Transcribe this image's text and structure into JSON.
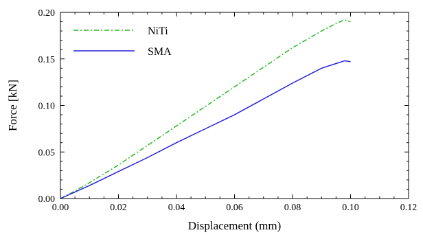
{
  "chart_data": {
    "type": "line",
    "title": "",
    "xlabel": "Displacement (mm)",
    "ylabel": "Force [kN]",
    "xlim": [
      0,
      0.12
    ],
    "ylim": [
      0,
      0.2
    ],
    "x_ticks": [
      0,
      0.02,
      0.04,
      0.06,
      0.08,
      0.1,
      0.12
    ],
    "y_ticks": [
      0,
      0.05,
      0.1,
      0.15,
      0.2
    ],
    "x_tick_labels": [
      "0.00",
      "0.02",
      "0.04",
      "0.06",
      "0.08",
      "0.10",
      "0.12"
    ],
    "y_tick_labels": [
      "0.00",
      "0.05",
      "0.10",
      "0.15",
      "0.20"
    ],
    "grid": false,
    "legend_position": "top-left",
    "series": [
      {
        "name": "NiTi",
        "color": "#22bb22",
        "line_style": "dash-dot",
        "x": [
          0,
          0.005,
          0.01,
          0.02,
          0.03,
          0.04,
          0.05,
          0.06,
          0.07,
          0.08,
          0.09,
          0.095,
          0.098,
          0.1
        ],
        "y": [
          0,
          0.008,
          0.017,
          0.036,
          0.057,
          0.078,
          0.099,
          0.12,
          0.141,
          0.162,
          0.18,
          0.188,
          0.192,
          0.19
        ]
      },
      {
        "name": "SMA",
        "color": "#2222dd",
        "line_style": "solid",
        "x": [
          0,
          0.005,
          0.01,
          0.02,
          0.03,
          0.04,
          0.05,
          0.06,
          0.07,
          0.08,
          0.09,
          0.095,
          0.098,
          0.1
        ],
        "y": [
          0,
          0.007,
          0.014,
          0.029,
          0.044,
          0.06,
          0.075,
          0.09,
          0.107,
          0.124,
          0.14,
          0.145,
          0.148,
          0.147
        ]
      }
    ]
  }
}
